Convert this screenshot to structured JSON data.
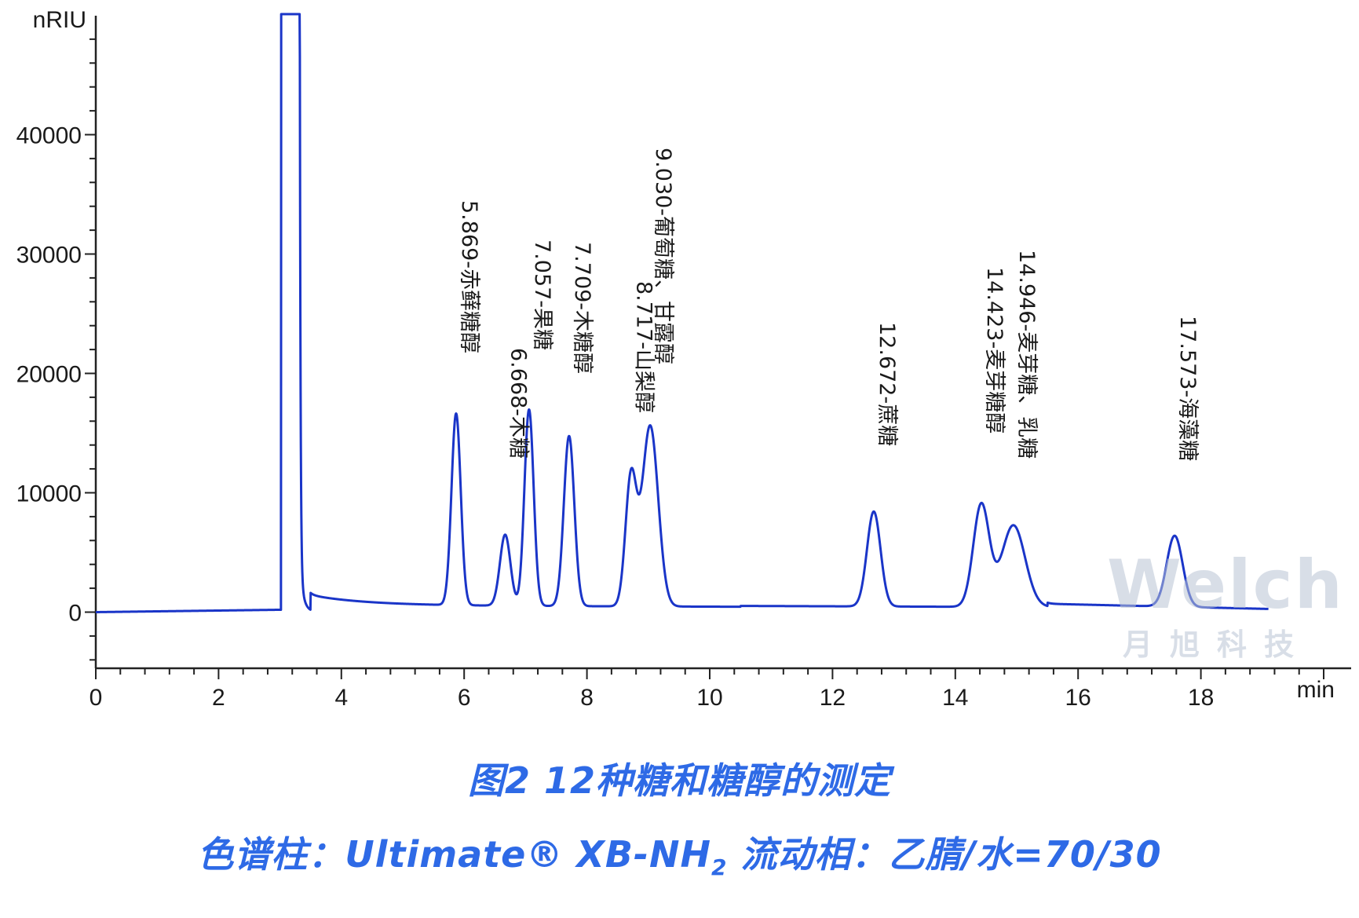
{
  "chart_data": {
    "type": "line",
    "ylabel": "nRIU",
    "xlabel": "min",
    "xlim": [
      0,
      20
    ],
    "ylim": [
      -4500,
      50000
    ],
    "x_ticks": [
      "0",
      "2",
      "4",
      "6",
      "8",
      "10",
      "12",
      "14",
      "16",
      "18"
    ],
    "y_ticks": [
      "0",
      "10000",
      "20000",
      "30000",
      "40000"
    ],
    "grid": false,
    "series": [
      {
        "color": "#1a35c8"
      }
    ],
    "peaks": [
      {
        "label": "5.869-赤藓糖醇",
        "rt": 5.869,
        "height": 16500
      },
      {
        "label": "6.668-木糖",
        "rt": 6.668,
        "height": 6400
      },
      {
        "label": "7.057-果糖",
        "rt": 7.057,
        "height": 16900
      },
      {
        "label": "7.709-木糖醇",
        "rt": 7.709,
        "height": 14700
      },
      {
        "label": "8.717-山梨醇",
        "rt": 8.717,
        "height": 11100
      },
      {
        "label": "9.030-葡萄糖、甘露醇",
        "rt": 9.03,
        "height": 15600
      },
      {
        "label": "12.672-蔗糖",
        "rt": 12.672,
        "height": 8400
      },
      {
        "label": "14.423-麦芽糖醇",
        "rt": 14.423,
        "height": 9000
      },
      {
        "label": "14.946-麦芽糖、乳糖",
        "rt": 14.946,
        "height": 7300
      },
      {
        "label": "17.573-海藻糖",
        "rt": 17.573,
        "height": 6400
      }
    ]
  },
  "caption": {
    "line1": "图2 12种糖和糖醇的测定",
    "line2_prefix": "色谱柱：Ultimate® XB-NH",
    "line2_sub": "2",
    "line2_suffix": " 流动相：乙腈/水=70/30"
  },
  "watermark": {
    "brand": "Welch",
    "sub": "月旭科技"
  }
}
